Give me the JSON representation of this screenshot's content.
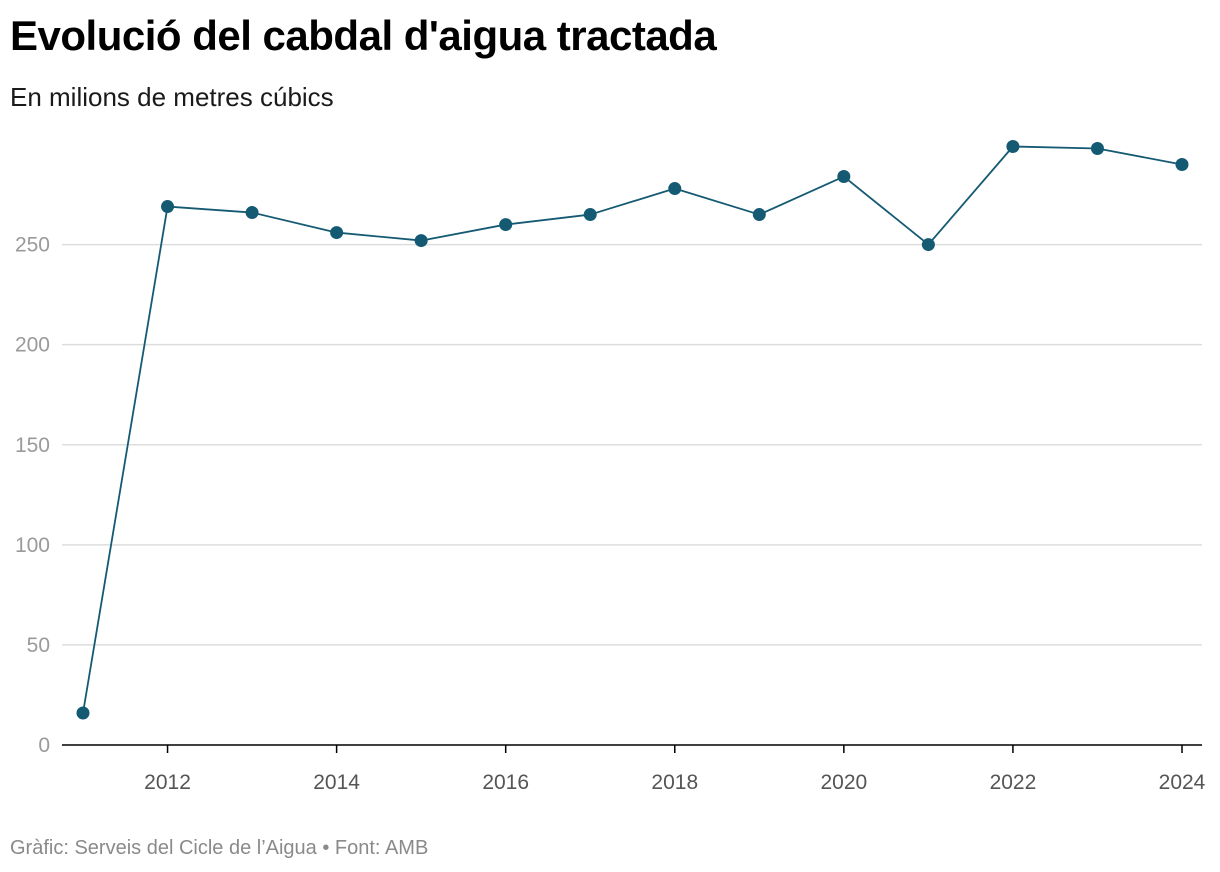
{
  "header": {
    "title": "Evolució del cabdal d'aigua tractada",
    "subtitle": "En milions de metres cúbics"
  },
  "footer": {
    "credit": "Gràfic: Serveis del Cicle de l’Aigua • Font: AMB"
  },
  "colors": {
    "series": "#155a73",
    "grid": "#dddddd",
    "axis": "#000000"
  },
  "chart_data": {
    "type": "line",
    "title": "Evolució del cabdal d'aigua tractada",
    "subtitle": "En milions de metres cúbics",
    "x": [
      2011,
      2012,
      2013,
      2014,
      2015,
      2016,
      2017,
      2018,
      2019,
      2020,
      2021,
      2022,
      2023,
      2024
    ],
    "series": [
      {
        "values": [
          16,
          269,
          266,
          256,
          252,
          260,
          265,
          278,
          265,
          284,
          250,
          299,
          298,
          290
        ]
      }
    ],
    "xticks": [
      "2012",
      "2014",
      "2016",
      "2018",
      "2020",
      "2022",
      "2024"
    ],
    "yticks": [
      "0",
      "50",
      "100",
      "150",
      "200",
      "250"
    ],
    "xlim": [
      2011,
      2024
    ],
    "ylim": [
      0,
      300
    ],
    "grid": "horizontal",
    "markers": true
  }
}
